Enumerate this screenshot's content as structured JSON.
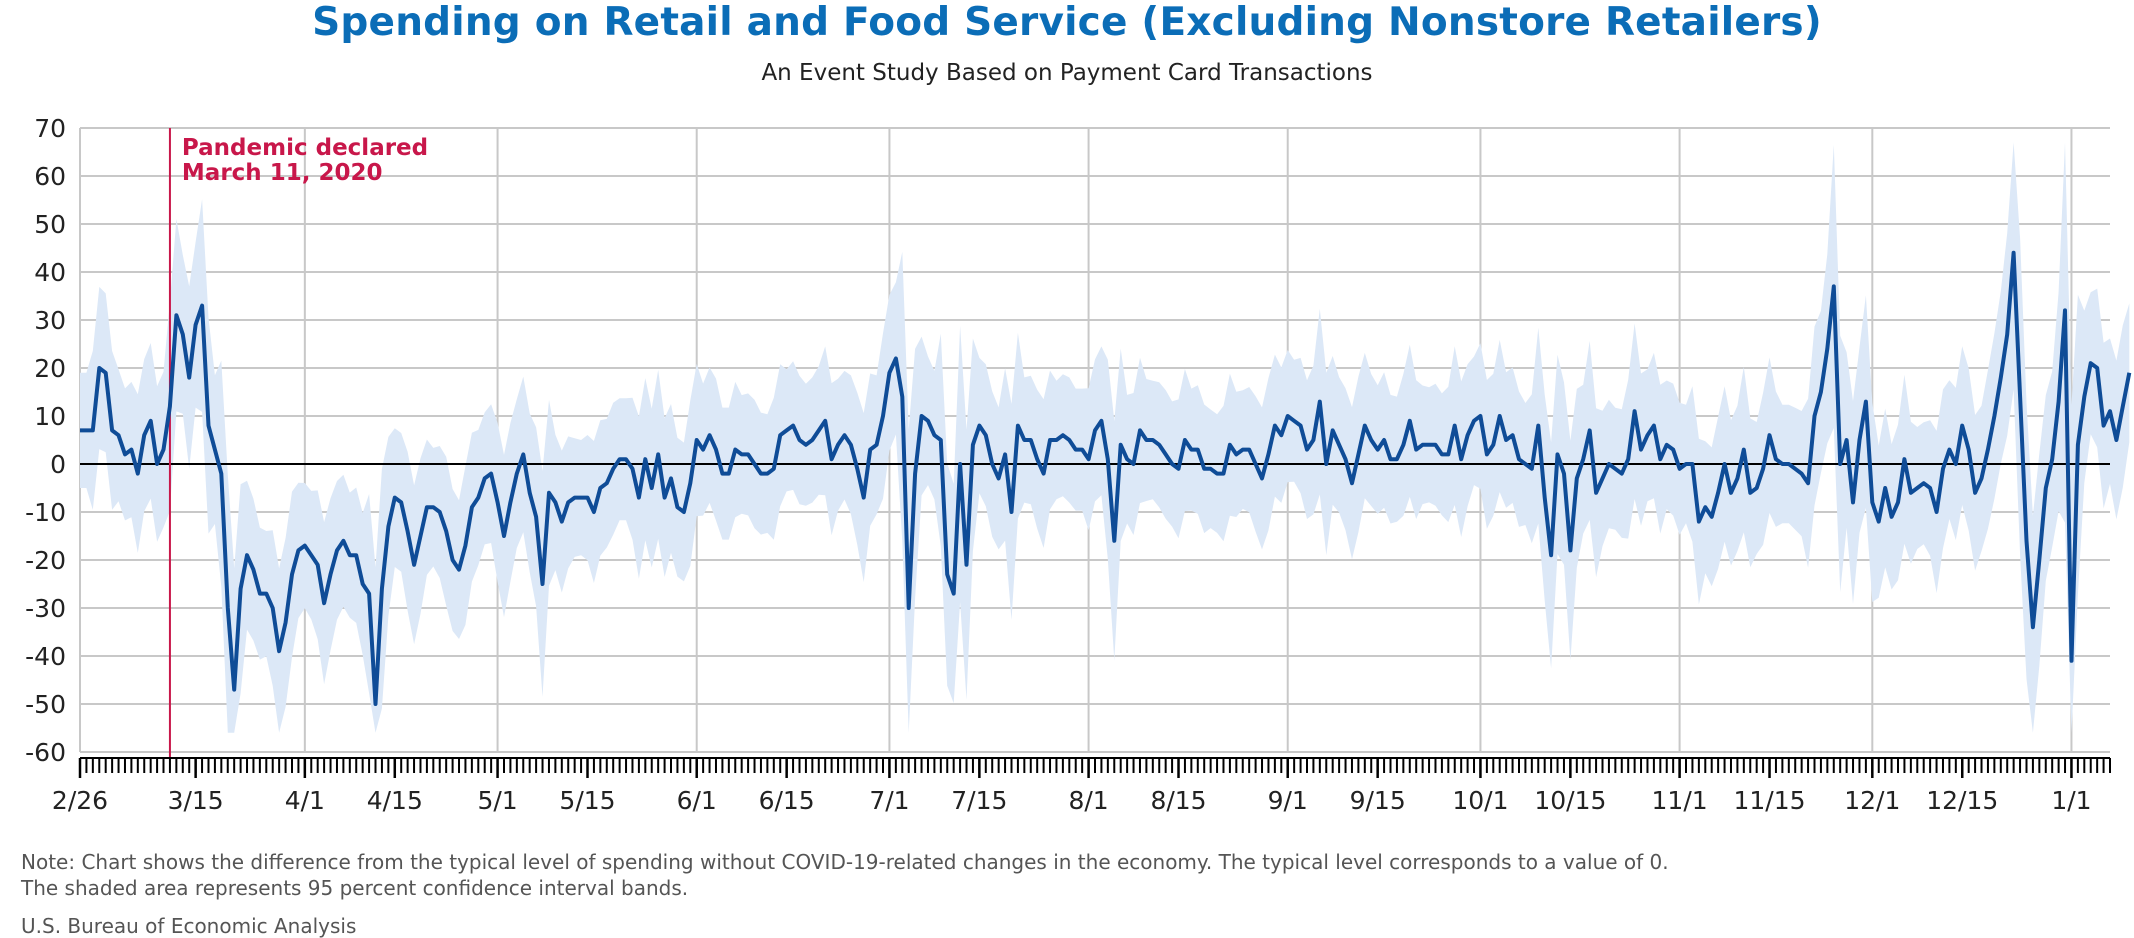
{
  "chart_data": {
    "type": "line",
    "title": "Spending on Retail and Food Service (Excluding Nonstore Retailers)",
    "subtitle": "An Event Study Based on Payment Card Transactions",
    "xlabel": "",
    "ylabel": "",
    "ylim": [
      -60,
      70
    ],
    "yticks": [
      "70",
      "60",
      "50",
      "40",
      "30",
      "20",
      "10",
      "0",
      "-10",
      "-20",
      "-30",
      "-40",
      "-50",
      "-60"
    ],
    "xlim_days": [
      0,
      316
    ],
    "xticks": [
      {
        "label": "2/26",
        "day": 0
      },
      {
        "label": "3/15",
        "day": 18
      },
      {
        "label": "4/1",
        "day": 35
      },
      {
        "label": "4/15",
        "day": 49
      },
      {
        "label": "5/1",
        "day": 65
      },
      {
        "label": "5/15",
        "day": 79
      },
      {
        "label": "6/1",
        "day": 96
      },
      {
        "label": "6/15",
        "day": 110
      },
      {
        "label": "7/1",
        "day": 126
      },
      {
        "label": "7/15",
        "day": 140
      },
      {
        "label": "8/1",
        "day": 157
      },
      {
        "label": "8/15",
        "day": 171
      },
      {
        "label": "9/1",
        "day": 188
      },
      {
        "label": "9/15",
        "day": 202
      },
      {
        "label": "10/1",
        "day": 218
      },
      {
        "label": "10/15",
        "day": 232
      },
      {
        "label": "11/1",
        "day": 249
      },
      {
        "label": "11/15",
        "day": 263
      },
      {
        "label": "12/1",
        "day": 279
      },
      {
        "label": "12/15",
        "day": 293
      },
      {
        "label": "1/1",
        "day": 310
      }
    ],
    "event": {
      "day": 14,
      "label_line1": "Pandemic declared",
      "label_line2": "March 11, 2020"
    },
    "series": [
      {
        "name": "Spending difference from typical level",
        "values": [
          7,
          7,
          7,
          20,
          19,
          7,
          6,
          2,
          3,
          -2,
          6,
          9,
          0,
          3,
          12,
          31,
          27,
          18,
          29,
          33,
          8,
          3,
          -2,
          -30,
          -47,
          -26,
          -19,
          -22,
          -27,
          -27,
          -30,
          -39,
          -33,
          -23,
          -18,
          -17,
          -19,
          -21,
          -29,
          -23,
          -18,
          -16,
          -19,
          -19,
          -25,
          -27,
          -50,
          -26,
          -13,
          -7,
          -8,
          -14,
          -21,
          -15,
          -9,
          -9,
          -10,
          -14,
          -20,
          -22,
          -17,
          -9,
          -7,
          -3,
          -2,
          -8,
          -15,
          -8,
          -2,
          2,
          -6,
          -11,
          -25,
          -6,
          -8,
          -12,
          -8,
          -7,
          -7,
          -7,
          -10,
          -5,
          -4,
          -1,
          1,
          1,
          -1,
          -7,
          1,
          -5,
          2,
          -7,
          -3,
          -9,
          -10,
          -4,
          5,
          3,
          6,
          3,
          -2,
          -2,
          3,
          2,
          2,
          0,
          -2,
          -2,
          -1,
          6,
          7,
          8,
          5,
          4,
          5,
          7,
          9,
          1,
          4,
          6,
          4,
          -1,
          -7,
          3,
          4,
          10,
          19,
          22,
          14,
          -30,
          -2,
          10,
          9,
          6,
          5,
          -23,
          -27,
          0,
          -21,
          4,
          8,
          6,
          0,
          -3,
          2,
          -10,
          8,
          5,
          5,
          1,
          -2,
          5,
          5,
          6,
          5,
          3,
          3,
          1,
          7,
          9,
          1,
          -16,
          4,
          1,
          0,
          7,
          5,
          5,
          4,
          2,
          0,
          -1,
          5,
          3,
          3,
          -1,
          -1,
          -2,
          -2,
          4,
          2,
          3,
          3,
          0,
          -3,
          2,
          8,
          6,
          10,
          9,
          8,
          3,
          5,
          13,
          0,
          7,
          4,
          1,
          -4,
          2,
          8,
          5,
          3,
          5,
          1,
          1,
          4,
          9,
          3,
          4,
          4,
          4,
          2,
          2,
          8,
          1,
          6,
          9,
          10,
          2,
          4,
          10,
          5,
          6,
          1,
          0,
          -1,
          8,
          -7,
          -19,
          2,
          -2,
          -18,
          -3,
          1,
          7,
          -6,
          -3,
          0,
          -1,
          -2,
          1,
          11,
          3,
          6,
          8,
          1,
          4,
          3,
          -1,
          0,
          0,
          -12,
          -9,
          -11,
          -6,
          0,
          -6,
          -3,
          3,
          -6,
          -5,
          -1,
          6,
          1,
          0,
          0,
          -1,
          -2,
          -4,
          10,
          15,
          24,
          37,
          0,
          5,
          -8,
          5,
          13,
          -8,
          -12,
          -5,
          -11,
          -8,
          1,
          -6,
          -5,
          -4,
          -5,
          -10,
          -1,
          3,
          0,
          8,
          3,
          -6,
          -3,
          3,
          10,
          18,
          27,
          44,
          14,
          -16,
          -34,
          -20,
          -5,
          1,
          13,
          32,
          -41,
          4,
          14,
          21,
          20,
          8,
          11,
          5,
          12,
          19
        ],
        "color": "#0f4c97"
      }
    ],
    "band": {
      "name": "95 percent confidence interval",
      "half_width_base": 12,
      "color": "#dce8f7"
    },
    "grid": true
  },
  "footer": {
    "note_line1": "Note: Chart shows the difference from the typical level of spending without COVID-19-related changes in the economy. The typical level corresponds to a value of 0.",
    "note_line2": "The shaded area represents 95 percent confidence interval bands.",
    "source": "U.S. Bureau of Economic Analysis"
  }
}
